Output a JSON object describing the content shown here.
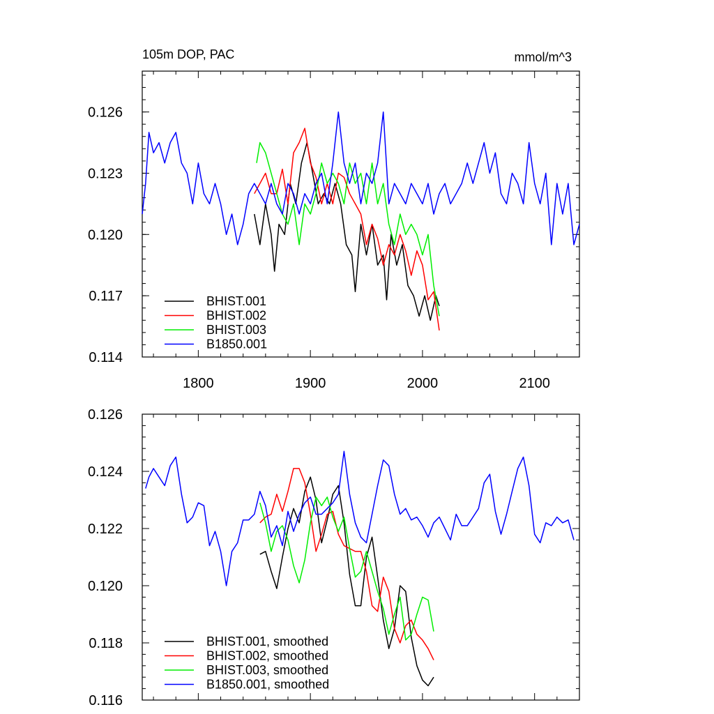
{
  "chart_data": [
    {
      "type": "line",
      "title_left": "105m DOP, PAC",
      "title_right": "mmol/m^3",
      "xlim": [
        1750,
        2140
      ],
      "ylim": [
        0.114,
        0.128
      ],
      "x_ticks": [
        1800,
        1900,
        2000,
        2100
      ],
      "x_tick_labels": [
        "1800",
        "1900",
        "2000",
        "2100"
      ],
      "y_ticks": [
        0.114,
        0.117,
        0.12,
        0.123,
        0.126
      ],
      "y_tick_labels": [
        "0.114",
        "0.117",
        "0.120",
        "0.123",
        "0.126"
      ],
      "legend_position": "bottom-left",
      "series": [
        {
          "name": "BHIST.001",
          "color": "#000000",
          "x": [
            1850,
            1855,
            1860,
            1865,
            1868,
            1872,
            1877,
            1882,
            1887,
            1892,
            1897,
            1902,
            1907,
            1912,
            1917,
            1922,
            1927,
            1932,
            1937,
            1940,
            1945,
            1950,
            1955,
            1960,
            1965,
            1968,
            1972,
            1977,
            1982,
            1987,
            1992,
            1997,
            2002,
            2007,
            2012,
            2015
          ],
          "y": [
            0.121,
            0.1195,
            0.1215,
            0.12,
            0.1182,
            0.1205,
            0.12,
            0.1225,
            0.1215,
            0.1235,
            0.1245,
            0.123,
            0.1215,
            0.122,
            0.1215,
            0.1225,
            0.1215,
            0.1195,
            0.119,
            0.1172,
            0.1205,
            0.119,
            0.1205,
            0.1185,
            0.119,
            0.1168,
            0.12,
            0.1185,
            0.1195,
            0.1175,
            0.117,
            0.116,
            0.117,
            0.1158,
            0.117,
            0.1165
          ]
        },
        {
          "name": "BHIST.002",
          "color": "#ff0000",
          "x": [
            1850,
            1855,
            1860,
            1865,
            1870,
            1875,
            1880,
            1885,
            1890,
            1895,
            1900,
            1905,
            1910,
            1915,
            1920,
            1925,
            1930,
            1935,
            1940,
            1945,
            1950,
            1955,
            1960,
            1965,
            1970,
            1975,
            1980,
            1985,
            1990,
            1995,
            2000,
            2005,
            2010,
            2015
          ],
          "y": [
            0.122,
            0.1225,
            0.123,
            0.122,
            0.122,
            0.1232,
            0.1215,
            0.124,
            0.1245,
            0.1252,
            0.1235,
            0.1228,
            0.1215,
            0.1225,
            0.1215,
            0.123,
            0.1228,
            0.122,
            0.1215,
            0.121,
            0.1195,
            0.1205,
            0.1198,
            0.1185,
            0.1195,
            0.119,
            0.12,
            0.1192,
            0.118,
            0.1192,
            0.1185,
            0.1168,
            0.1172,
            0.1153
          ]
        },
        {
          "name": "BHIST.003",
          "color": "#00ee00",
          "x": [
            1852,
            1855,
            1860,
            1865,
            1870,
            1875,
            1880,
            1885,
            1890,
            1895,
            1900,
            1905,
            1910,
            1915,
            1920,
            1925,
            1930,
            1935,
            1940,
            1945,
            1950,
            1955,
            1960,
            1965,
            1970,
            1975,
            1980,
            1985,
            1990,
            1995,
            2000,
            2005,
            2010,
            2015
          ],
          "y": [
            0.1235,
            0.1245,
            0.124,
            0.123,
            0.122,
            0.121,
            0.1205,
            0.1215,
            0.1195,
            0.1215,
            0.121,
            0.122,
            0.1235,
            0.1225,
            0.123,
            0.1225,
            0.1215,
            0.1235,
            0.1225,
            0.123,
            0.1215,
            0.1235,
            0.1215,
            0.1225,
            0.1205,
            0.1195,
            0.121,
            0.12,
            0.1205,
            0.12,
            0.119,
            0.12,
            0.1175,
            0.116
          ]
        },
        {
          "name": "B1850.001",
          "color": "#0000ff",
          "x": [
            1750,
            1753,
            1756,
            1760,
            1765,
            1770,
            1775,
            1780,
            1785,
            1790,
            1795,
            1800,
            1805,
            1810,
            1815,
            1820,
            1825,
            1830,
            1835,
            1840,
            1845,
            1850,
            1855,
            1860,
            1865,
            1870,
            1875,
            1880,
            1885,
            1890,
            1895,
            1900,
            1905,
            1910,
            1915,
            1920,
            1925,
            1930,
            1935,
            1940,
            1945,
            1950,
            1955,
            1960,
            1965,
            1970,
            1975,
            1980,
            1985,
            1990,
            1995,
            2000,
            2005,
            2010,
            2015,
            2020,
            2025,
            2030,
            2035,
            2040,
            2045,
            2050,
            2055,
            2060,
            2065,
            2070,
            2075,
            2080,
            2085,
            2090,
            2095,
            2100,
            2105,
            2110,
            2115,
            2120,
            2125,
            2130,
            2135,
            2140
          ],
          "y": [
            0.121,
            0.1225,
            0.125,
            0.124,
            0.1245,
            0.1235,
            0.1245,
            0.125,
            0.1235,
            0.123,
            0.1215,
            0.1235,
            0.122,
            0.1215,
            0.1225,
            0.1215,
            0.12,
            0.121,
            0.1195,
            0.1205,
            0.122,
            0.1225,
            0.122,
            0.1215,
            0.1225,
            0.1215,
            0.121,
            0.1225,
            0.122,
            0.121,
            0.122,
            0.1215,
            0.1225,
            0.123,
            0.1215,
            0.1235,
            0.126,
            0.1235,
            0.1225,
            0.1235,
            0.1215,
            0.123,
            0.1225,
            0.1235,
            0.126,
            0.1215,
            0.1225,
            0.122,
            0.1215,
            0.1225,
            0.122,
            0.1215,
            0.1225,
            0.121,
            0.122,
            0.1225,
            0.1215,
            0.122,
            0.1225,
            0.1235,
            0.1225,
            0.1235,
            0.1245,
            0.123,
            0.124,
            0.122,
            0.1215,
            0.123,
            0.1225,
            0.1215,
            0.1245,
            0.1225,
            0.1215,
            0.123,
            0.1195,
            0.1225,
            0.121,
            0.1225,
            0.1195,
            0.1205
          ]
        }
      ]
    },
    {
      "type": "line",
      "xlim": [
        1750,
        2140
      ],
      "ylim": [
        0.116,
        0.126
      ],
      "x_ticks": [
        1800,
        1900,
        2000,
        2100
      ],
      "y_ticks": [
        0.116,
        0.118,
        0.12,
        0.122,
        0.124,
        0.126
      ],
      "y_tick_labels": [
        "0.116",
        "0.118",
        "0.120",
        "0.122",
        "0.124",
        "0.126"
      ],
      "legend_position": "bottom-left",
      "series": [
        {
          "name": "BHIST.001, smoothed",
          "color": "#000000",
          "x": [
            1855,
            1860,
            1865,
            1870,
            1875,
            1880,
            1885,
            1890,
            1895,
            1900,
            1905,
            1910,
            1915,
            1920,
            1925,
            1930,
            1935,
            1940,
            1945,
            1950,
            1955,
            1960,
            1965,
            1970,
            1975,
            1980,
            1985,
            1990,
            1995,
            2000,
            2005,
            2010
          ],
          "y": [
            0.1211,
            0.1212,
            0.1205,
            0.1199,
            0.121,
            0.122,
            0.1227,
            0.1222,
            0.1233,
            0.1238,
            0.123,
            0.1215,
            0.1223,
            0.1232,
            0.1235,
            0.1222,
            0.1204,
            0.1193,
            0.1193,
            0.121,
            0.1217,
            0.1203,
            0.1188,
            0.1178,
            0.1185,
            0.12,
            0.1198,
            0.1182,
            0.1172,
            0.1167,
            0.1165,
            0.1168
          ]
        },
        {
          "name": "BHIST.002, smoothed",
          "color": "#ff0000",
          "x": [
            1855,
            1860,
            1865,
            1870,
            1875,
            1880,
            1885,
            1890,
            1895,
            1900,
            1905,
            1910,
            1915,
            1920,
            1925,
            1930,
            1935,
            1940,
            1945,
            1950,
            1955,
            1960,
            1965,
            1970,
            1975,
            1980,
            1985,
            1990,
            1995,
            2000,
            2005,
            2010
          ],
          "y": [
            0.1222,
            0.1224,
            0.1225,
            0.1232,
            0.1226,
            0.1233,
            0.1241,
            0.1241,
            0.1236,
            0.1225,
            0.1212,
            0.1218,
            0.1225,
            0.1226,
            0.1218,
            0.1214,
            0.1213,
            0.1212,
            0.1212,
            0.1205,
            0.1193,
            0.1191,
            0.1203,
            0.1198,
            0.1185,
            0.118,
            0.1186,
            0.1188,
            0.1183,
            0.1181,
            0.1178,
            0.1174
          ]
        },
        {
          "name": "BHIST.003, smoothed",
          "color": "#00ee00",
          "x": [
            1855,
            1860,
            1865,
            1870,
            1875,
            1880,
            1885,
            1890,
            1895,
            1900,
            1905,
            1910,
            1915,
            1920,
            1925,
            1930,
            1935,
            1940,
            1945,
            1950,
            1955,
            1960,
            1965,
            1970,
            1975,
            1980,
            1985,
            1990,
            1995,
            2000,
            2005,
            2010
          ],
          "y": [
            0.1229,
            0.1222,
            0.1212,
            0.1219,
            0.1221,
            0.1216,
            0.1207,
            0.1201,
            0.1209,
            0.1222,
            0.1231,
            0.1228,
            0.1231,
            0.1224,
            0.1219,
            0.1224,
            0.1213,
            0.1203,
            0.1205,
            0.1212,
            0.1205,
            0.1198,
            0.1192,
            0.1183,
            0.119,
            0.1196,
            0.1181,
            0.1183,
            0.119,
            0.1196,
            0.1195,
            0.1184
          ]
        },
        {
          "name": "B1850.001, smoothed",
          "color": "#0000ff",
          "x": [
            1753,
            1756,
            1760,
            1765,
            1770,
            1775,
            1780,
            1785,
            1790,
            1795,
            1800,
            1805,
            1810,
            1815,
            1820,
            1825,
            1830,
            1835,
            1840,
            1845,
            1850,
            1855,
            1860,
            1865,
            1870,
            1875,
            1880,
            1885,
            1890,
            1895,
            1900,
            1905,
            1910,
            1915,
            1920,
            1925,
            1930,
            1935,
            1940,
            1945,
            1950,
            1955,
            1960,
            1965,
            1970,
            1975,
            1980,
            1985,
            1990,
            1995,
            2000,
            2005,
            2010,
            2015,
            2020,
            2025,
            2030,
            2035,
            2040,
            2045,
            2050,
            2055,
            2060,
            2065,
            2070,
            2075,
            2080,
            2085,
            2090,
            2095,
            2100,
            2105,
            2110,
            2115,
            2120,
            2125,
            2130,
            2135
          ],
          "y": [
            0.1234,
            0.1238,
            0.1241,
            0.1238,
            0.1235,
            0.1242,
            0.1245,
            0.1232,
            0.1222,
            0.1224,
            0.1229,
            0.1228,
            0.1214,
            0.1219,
            0.1212,
            0.12,
            0.1212,
            0.1215,
            0.1223,
            0.1223,
            0.1225,
            0.1233,
            0.1228,
            0.1217,
            0.1221,
            0.1214,
            0.1226,
            0.1219,
            0.1225,
            0.1229,
            0.1231,
            0.1225,
            0.1225,
            0.1227,
            0.1229,
            0.1232,
            0.1247,
            0.1232,
            0.1222,
            0.1217,
            0.1215,
            0.1225,
            0.1235,
            0.1244,
            0.1242,
            0.1232,
            0.1225,
            0.1227,
            0.1223,
            0.1224,
            0.1221,
            0.1217,
            0.1222,
            0.1224,
            0.122,
            0.1216,
            0.1225,
            0.1221,
            0.1221,
            0.1224,
            0.1227,
            0.1236,
            0.1239,
            0.1226,
            0.1218,
            0.1225,
            0.1233,
            0.1241,
            0.1245,
            0.1235,
            0.1218,
            0.1215,
            0.1222,
            0.1221,
            0.1224,
            0.1222,
            0.1223,
            0.1216
          ]
        }
      ]
    }
  ]
}
